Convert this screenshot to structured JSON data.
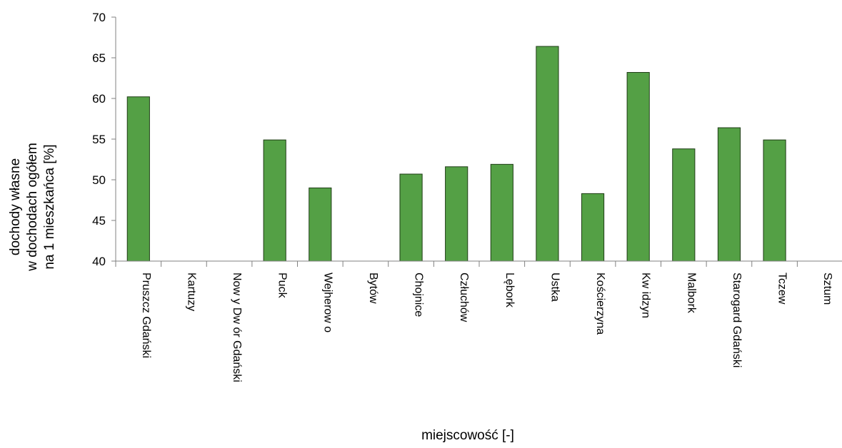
{
  "chart_data": {
    "type": "bar",
    "categories": [
      "Pruszcz Gdański",
      "Kartuzy",
      "Now y Dw ór Gdański",
      "Puck",
      "Wejherow o",
      "Bytów",
      "Chojnice",
      "Człuchów",
      "Lębork",
      "Ustka",
      "Kościerzyna",
      "Kw idzyn",
      "Malbork",
      "Starogard Gdański",
      "Tczew",
      "Sztum"
    ],
    "values": [
      60.2,
      null,
      null,
      54.9,
      49.0,
      null,
      50.7,
      51.6,
      51.9,
      66.4,
      48.3,
      63.2,
      53.8,
      56.4,
      54.9,
      null
    ],
    "ylim": [
      40,
      70
    ],
    "yticks": [
      "40",
      "45",
      "50",
      "55",
      "60",
      "65",
      "70"
    ],
    "xlabel": "miejscowość [-]",
    "ylabel": [
      "dochody własne",
      "w dochodach ogółem",
      "na 1 mieszkańca [%]"
    ],
    "grid": false,
    "bar_color": "#54a045",
    "bar_edge_color": "#1f3d16"
  }
}
